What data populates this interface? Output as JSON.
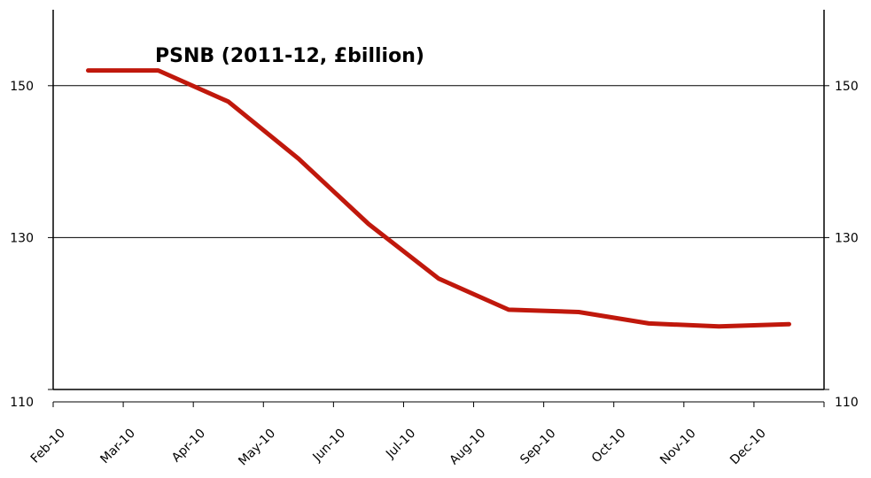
{
  "chart_data": {
    "type": "line",
    "title": "PSNB (2011-12, £billion)",
    "xlabel": "",
    "ylabel": "",
    "categories": [
      "Feb-10",
      "Mar-10",
      "Apr-10",
      "May-10",
      "Jun-10",
      "Jul-10",
      "Aug-10",
      "Sep-10",
      "Oct-10",
      "Nov-10",
      "Dec-10"
    ],
    "series": [
      {
        "values": [
          152.0,
          152.0,
          147.9,
          140.4,
          131.8,
          124.6,
          120.5,
          120.2,
          118.7,
          118.3,
          118.6
        ],
        "color": "#c0180c"
      }
    ],
    "ylim": [
      110,
      160
    ],
    "yticks": [
      110,
      130,
      150
    ],
    "ytick_labels": [
      "110",
      "130",
      "150"
    ],
    "secondary_y_axis": true,
    "grid": "horizontal at 130 and 150",
    "legend": "none"
  }
}
